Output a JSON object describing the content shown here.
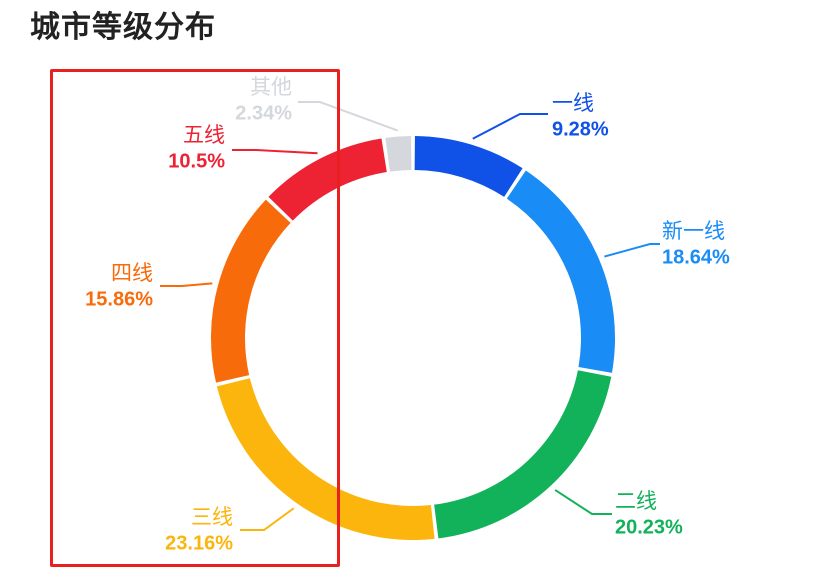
{
  "title": "城市等级分布",
  "chart_data": {
    "type": "pie",
    "title": "城市等级分布",
    "donut": true,
    "legend": "none",
    "slices": [
      {
        "label": "一线",
        "value": 9.28,
        "percent_label": "9.28%",
        "color": "#1051e8"
      },
      {
        "label": "新一线",
        "value": 18.64,
        "percent_label": "18.64%",
        "color": "#1a8cf6"
      },
      {
        "label": "二线",
        "value": 20.23,
        "percent_label": "20.23%",
        "color": "#12b25b"
      },
      {
        "label": "三线",
        "value": 23.16,
        "percent_label": "23.16%",
        "color": "#fbb50c"
      },
      {
        "label": "四线",
        "value": 15.86,
        "percent_label": "15.86%",
        "color": "#f86b0b"
      },
      {
        "label": "五线",
        "value": 10.5,
        "percent_label": "10.5%",
        "color": "#ed2233"
      },
      {
        "label": "其他",
        "value": 2.34,
        "percent_label": "2.34%",
        "color": "#d4d7dc"
      }
    ]
  },
  "annotation": {
    "highlight_color": "#e8201f"
  }
}
